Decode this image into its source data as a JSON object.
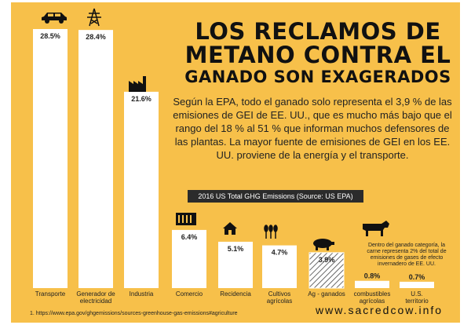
{
  "headline": {
    "line1": "LOS RECLAMOS DE",
    "line2": "METANO CONTRA EL",
    "line3": "GANADO SON EXAGERADOS"
  },
  "body_text": "Según la EPA, todo el ganado solo representa el 3,9 % de las emisiones de GEI de EE. UU., que es mucho más bajo que el rango del 18 % al 51 % que informan muchos defensores de las plantas. La mayor fuente de emisiones de GEI en los EE. UU. proviene de la energía y el transporte.",
  "source_bar": "2016 US Total GHG Emissions (Source: US EPA)",
  "note": "Dentro del ganado categoría, la carne representa 2% del total de emisiones de gases de efecto invernadero de EE. UU.",
  "footnote": "1. https://www.epa.gov/ghgemissions/sources-greenhouse-gas-emissions#agriculture",
  "site": "www.sacredcow.info",
  "colors": {
    "background": "#f7c04a",
    "bar": "#ffffff",
    "text": "#222222",
    "source_bar": "#2b2b2b"
  },
  "chart_data": {
    "type": "bar",
    "title": "2016 US Total GHG Emissions (Source: US EPA)",
    "categories": [
      "Transporte",
      "Generador de electricidad",
      "Industria",
      "Comercio",
      "Recidencia",
      "Cultivos agrícolas",
      "Ag - ganados",
      "combustibles agrícolas",
      "U.S. territorio"
    ],
    "values": [
      28.5,
      28.4,
      21.6,
      6.4,
      5.1,
      4.7,
      3.9,
      0.8,
      0.7
    ],
    "value_labels": [
      "28.5%",
      "28.4%",
      "21.6%",
      "6.4%",
      "5.1%",
      "4.7%",
      "3.9%",
      "0.8%",
      "0.7%"
    ],
    "icons": [
      "car-icon",
      "power-tower-icon",
      "factory-icon",
      "building-icon",
      "house-icon",
      "wheat-icon",
      "pig-icon",
      "cow-icon",
      ""
    ],
    "unit": "%",
    "grid": false,
    "legend": "none"
  }
}
